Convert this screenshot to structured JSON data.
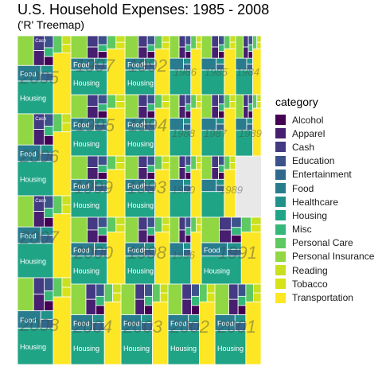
{
  "chart_data": {
    "type": "treemap",
    "title": "U.S. Household Expenses: 1985 - 2008",
    "subtitle": "('R' Treemap)",
    "legend_title": "category",
    "legend_position": "right",
    "categories": [
      "Alcohol",
      "Apparel",
      "Cash",
      "Education",
      "Entertainment",
      "Food",
      "Healthcare",
      "Housing",
      "Misc",
      "Personal Care",
      "Personal Insurance",
      "Reading",
      "Tobacco",
      "Transportation"
    ],
    "colors": {
      "Alcohol": "#440154",
      "Apparel": "#481f70",
      "Cash": "#443983",
      "Education": "#3b528b",
      "Entertainment": "#31688e",
      "Food": "#287c8e",
      "Healthcare": "#21918c",
      "Housing": "#20a486",
      "Misc": "#35b779",
      "Personal Care": "#5ec962",
      "Personal Insurance": "#90d743",
      "Reading": "#c8e020",
      "Tobacco": "#d8e219",
      "Transportation": "#fde725"
    },
    "groups": [
      "2005",
      "2006",
      "2007",
      "2008",
      "1997",
      "1992",
      "1986",
      "1985",
      "1984",
      "1995",
      "1994",
      "1988",
      "1987",
      "1999",
      "1993",
      "1990",
      "1989",
      "2000",
      "1998",
      "1996",
      "1991",
      "2004",
      "2003",
      "2002",
      "2001"
    ],
    "cell_labels": {
      "Housing": "Housing",
      "Food": "Food",
      "Cash": "Cash"
    }
  }
}
